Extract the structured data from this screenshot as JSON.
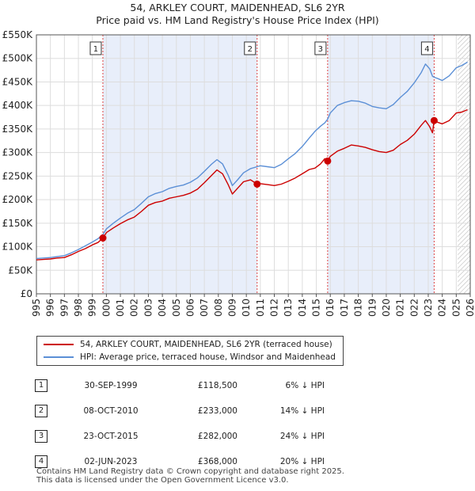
{
  "chart_data": {
    "type": "line",
    "title": "54, ARKLEY COURT, MAIDENHEAD, SL6 2YR",
    "subtitle": "Price paid vs. HM Land Registry's House Price Index (HPI)",
    "xlim": [
      1995,
      2026
    ],
    "ylim": [
      0,
      550000
    ],
    "x_ticks": [
      1995,
      1996,
      1997,
      1998,
      1999,
      2000,
      2001,
      2002,
      2003,
      2004,
      2005,
      2006,
      2007,
      2008,
      2009,
      2010,
      2011,
      2012,
      2013,
      2014,
      2015,
      2016,
      2017,
      2018,
      2019,
      2020,
      2021,
      2022,
      2023,
      2024,
      2025,
      2026
    ],
    "y_ticks": [
      {
        "value": 0,
        "label": "£0"
      },
      {
        "value": 50000,
        "label": "£50K"
      },
      {
        "value": 100000,
        "label": "£100K"
      },
      {
        "value": 150000,
        "label": "£150K"
      },
      {
        "value": 200000,
        "label": "£200K"
      },
      {
        "value": 250000,
        "label": "£250K"
      },
      {
        "value": 300000,
        "label": "£300K"
      },
      {
        "value": 350000,
        "label": "£350K"
      },
      {
        "value": 400000,
        "label": "£400K"
      },
      {
        "value": 450000,
        "label": "£450K"
      },
      {
        "value": 500000,
        "label": "£500K"
      },
      {
        "value": 550000,
        "label": "£550K"
      }
    ],
    "grid": true,
    "shaded_periods": [
      [
        1999.75,
        2010.77
      ],
      [
        2015.81,
        2023.42
      ]
    ],
    "forecast_start": 2025.1,
    "series": [
      {
        "name": "54, ARKLEY COURT, MAIDENHEAD, SL6 2YR (terraced house)",
        "color": "#cc0000",
        "points": [
          [
            1995,
            72000
          ],
          [
            1995.5,
            73000
          ],
          [
            1996,
            74000
          ],
          [
            1996.5,
            76000
          ],
          [
            1997,
            77000
          ],
          [
            1997.5,
            83000
          ],
          [
            1998,
            90000
          ],
          [
            1998.5,
            96000
          ],
          [
            1999,
            104000
          ],
          [
            1999.4,
            109000
          ],
          [
            1999.75,
            118500
          ],
          [
            2000,
            130000
          ],
          [
            2000.5,
            140000
          ],
          [
            2001,
            149000
          ],
          [
            2001.5,
            157000
          ],
          [
            2002,
            163000
          ],
          [
            2002.5,
            175000
          ],
          [
            2003,
            188000
          ],
          [
            2003.5,
            194000
          ],
          [
            2004,
            197000
          ],
          [
            2004.5,
            203000
          ],
          [
            2005,
            206000
          ],
          [
            2005.5,
            209000
          ],
          [
            2006,
            214000
          ],
          [
            2006.5,
            222000
          ],
          [
            2007,
            236000
          ],
          [
            2007.5,
            251000
          ],
          [
            2007.9,
            263000
          ],
          [
            2008.3,
            255000
          ],
          [
            2008.7,
            232000
          ],
          [
            2009,
            212000
          ],
          [
            2009.4,
            225000
          ],
          [
            2009.8,
            238000
          ],
          [
            2010.3,
            242000
          ],
          [
            2010.77,
            233000
          ],
          [
            2011,
            234000
          ],
          [
            2011.5,
            232000
          ],
          [
            2012,
            230000
          ],
          [
            2012.5,
            233000
          ],
          [
            2013,
            239000
          ],
          [
            2013.5,
            246000
          ],
          [
            2014,
            255000
          ],
          [
            2014.5,
            264000
          ],
          [
            2014.9,
            267000
          ],
          [
            2015.3,
            276000
          ],
          [
            2015.6,
            287000
          ],
          [
            2015.81,
            282000
          ],
          [
            2016,
            292000
          ],
          [
            2016.5,
            303000
          ],
          [
            2017,
            309000
          ],
          [
            2017.5,
            316000
          ],
          [
            2018,
            314000
          ],
          [
            2018.5,
            311000
          ],
          [
            2019,
            306000
          ],
          [
            2019.5,
            302000
          ],
          [
            2020,
            300000
          ],
          [
            2020.5,
            305000
          ],
          [
            2021,
            317000
          ],
          [
            2021.5,
            326000
          ],
          [
            2022,
            339000
          ],
          [
            2022.5,
            358000
          ],
          [
            2022.8,
            368000
          ],
          [
            2023.1,
            355000
          ],
          [
            2023.3,
            342000
          ],
          [
            2023.42,
            368000
          ],
          [
            2023.7,
            364000
          ],
          [
            2024,
            361000
          ],
          [
            2024.5,
            368000
          ],
          [
            2025,
            384000
          ],
          [
            2025.4,
            386000
          ],
          [
            2025.8,
            391000
          ]
        ]
      },
      {
        "name": "HPI: Average price, terraced house, Windsor and Maidenhead",
        "color": "#5b8fd6",
        "points": [
          [
            1995,
            75000
          ],
          [
            1995.5,
            76000
          ],
          [
            1996,
            77000
          ],
          [
            1996.5,
            79000
          ],
          [
            1997,
            81000
          ],
          [
            1997.5,
            87000
          ],
          [
            1998,
            94000
          ],
          [
            1998.5,
            102000
          ],
          [
            1999,
            110000
          ],
          [
            1999.4,
            117000
          ],
          [
            1999.75,
            126000
          ],
          [
            2000,
            138000
          ],
          [
            2000.5,
            150000
          ],
          [
            2001,
            161000
          ],
          [
            2001.5,
            171000
          ],
          [
            2002,
            179000
          ],
          [
            2002.5,
            192000
          ],
          [
            2003,
            206000
          ],
          [
            2003.5,
            213000
          ],
          [
            2004,
            217000
          ],
          [
            2004.5,
            224000
          ],
          [
            2005,
            228000
          ],
          [
            2005.5,
            231000
          ],
          [
            2006,
            237000
          ],
          [
            2006.5,
            246000
          ],
          [
            2007,
            260000
          ],
          [
            2007.5,
            275000
          ],
          [
            2007.9,
            285000
          ],
          [
            2008.3,
            276000
          ],
          [
            2008.7,
            252000
          ],
          [
            2009,
            230000
          ],
          [
            2009.4,
            243000
          ],
          [
            2009.8,
            257000
          ],
          [
            2010.3,
            266000
          ],
          [
            2010.77,
            270000
          ],
          [
            2011,
            272000
          ],
          [
            2011.5,
            270000
          ],
          [
            2012,
            268000
          ],
          [
            2012.5,
            275000
          ],
          [
            2013,
            287000
          ],
          [
            2013.5,
            298000
          ],
          [
            2014,
            313000
          ],
          [
            2014.5,
            331000
          ],
          [
            2014.9,
            345000
          ],
          [
            2015.3,
            356000
          ],
          [
            2015.6,
            363000
          ],
          [
            2015.81,
            371000
          ],
          [
            2016,
            384000
          ],
          [
            2016.5,
            400000
          ],
          [
            2017,
            406000
          ],
          [
            2017.5,
            410000
          ],
          [
            2018,
            409000
          ],
          [
            2018.5,
            405000
          ],
          [
            2019,
            398000
          ],
          [
            2019.5,
            395000
          ],
          [
            2020,
            393000
          ],
          [
            2020.5,
            402000
          ],
          [
            2021,
            417000
          ],
          [
            2021.5,
            430000
          ],
          [
            2022,
            448000
          ],
          [
            2022.5,
            470000
          ],
          [
            2022.8,
            488000
          ],
          [
            2023.1,
            478000
          ],
          [
            2023.3,
            462000
          ],
          [
            2023.42,
            460000
          ],
          [
            2023.7,
            457000
          ],
          [
            2024,
            453000
          ],
          [
            2024.5,
            463000
          ],
          [
            2025,
            480000
          ],
          [
            2025.4,
            485000
          ],
          [
            2025.8,
            492000
          ]
        ]
      }
    ],
    "markers": [
      {
        "label": "1",
        "x": 1999.75,
        "y": 118500
      },
      {
        "label": "2",
        "x": 2010.77,
        "y": 233000
      },
      {
        "label": "3",
        "x": 2015.81,
        "y": 282000
      },
      {
        "label": "4",
        "x": 2023.42,
        "y": 368000
      }
    ]
  },
  "legend": {
    "property": "54, ARKLEY COURT, MAIDENHEAD, SL6 2YR (terraced house)",
    "hpi": "HPI: Average price, terraced house, Windsor and Maidenhead"
  },
  "transactions": [
    {
      "num": "1",
      "date": "30-SEP-1999",
      "price": "£118,500",
      "hpi": "6% ↓ HPI"
    },
    {
      "num": "2",
      "date": "08-OCT-2010",
      "price": "£233,000",
      "hpi": "14% ↓ HPI"
    },
    {
      "num": "3",
      "date": "23-OCT-2015",
      "price": "£282,000",
      "hpi": "24% ↓ HPI"
    },
    {
      "num": "4",
      "date": "02-JUN-2023",
      "price": "£368,000",
      "hpi": "20% ↓ HPI"
    }
  ],
  "footer": {
    "line1": "Contains HM Land Registry data © Crown copyright and database right 2025.",
    "line2": "This data is licensed under the Open Government Licence v3.0."
  }
}
